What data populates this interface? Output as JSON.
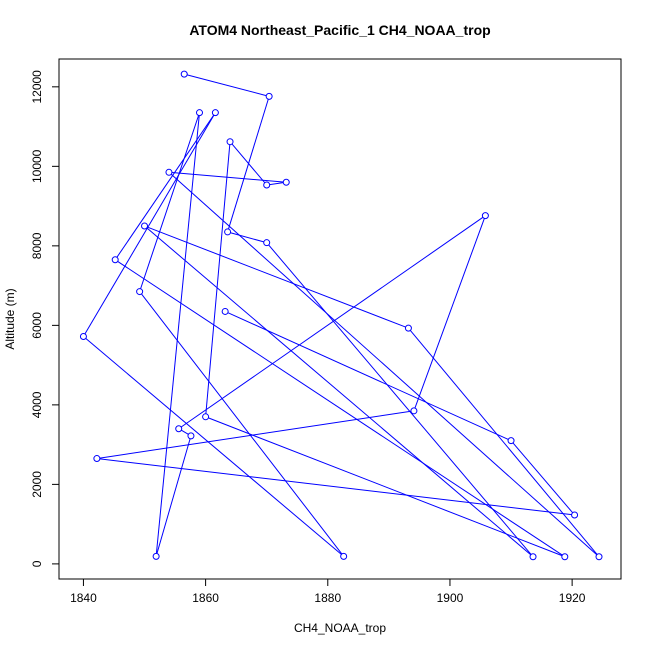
{
  "chart_data": {
    "type": "line",
    "title": "ATOM4 Northeast_Pacific_1 CH4_NOAA_trop",
    "xlabel": "CH4_NOAA_trop",
    "ylabel": "Altitude (m)",
    "xlim": [
      1836,
      1928
    ],
    "ylim": [
      -380,
      12700
    ],
    "xticks": [
      1840,
      1860,
      1880,
      1900,
      1920
    ],
    "yticks": [
      0,
      2000,
      4000,
      6000,
      8000,
      10000,
      12000
    ],
    "grid": false,
    "markers": "open-circle",
    "series_color": "#0000ff",
    "points": [
      {
        "x": 1856.5,
        "y": 12320
      },
      {
        "x": 1870.4,
        "y": 11760
      },
      {
        "x": 1863.6,
        "y": 8350
      },
      {
        "x": 1870.0,
        "y": 8080
      },
      {
        "x": 1913.6,
        "y": 180
      },
      {
        "x": 1850.0,
        "y": 8500
      },
      {
        "x": 1893.2,
        "y": 5930
      },
      {
        "x": 1924.4,
        "y": 180
      },
      {
        "x": 1854.0,
        "y": 9850
      },
      {
        "x": 1873.2,
        "y": 9600
      },
      {
        "x": 1870.0,
        "y": 9530
      },
      {
        "x": 1864.0,
        "y": 10620
      },
      {
        "x": 1860.0,
        "y": 3700
      },
      {
        "x": 1918.8,
        "y": 180
      },
      {
        "x": 1845.2,
        "y": 7650
      },
      {
        "x": 1861.6,
        "y": 11350
      },
      {
        "x": 1840.0,
        "y": 5720
      },
      {
        "x": 1882.6,
        "y": 190
      },
      {
        "x": 1849.2,
        "y": 6850
      },
      {
        "x": 1859.0,
        "y": 11350
      },
      {
        "x": 1851.9,
        "y": 190
      },
      {
        "x": 1857.6,
        "y": 3220
      },
      {
        "x": 1855.6,
        "y": 3400
      },
      {
        "x": 1905.8,
        "y": 8760
      },
      {
        "x": 1894.1,
        "y": 3850
      },
      {
        "x": 1842.2,
        "y": 2650
      },
      {
        "x": 1920.4,
        "y": 1230
      },
      {
        "x": 1910.0,
        "y": 3100
      },
      {
        "x": 1863.2,
        "y": 6350
      }
    ]
  }
}
